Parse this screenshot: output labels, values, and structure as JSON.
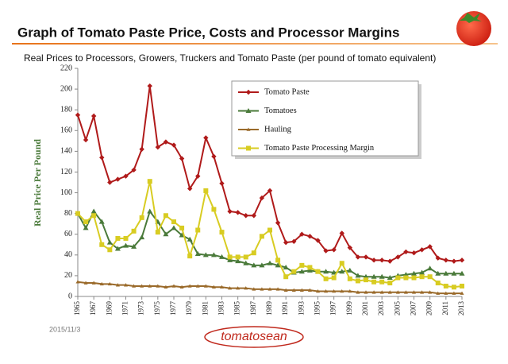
{
  "header": {
    "title": "Graph of Tomato Paste Price, Costs and Processor Margins"
  },
  "chart_data": {
    "type": "line",
    "subtitle": "Real Prices to Processors, Growers, Truckers and Tomato Paste  (per pound of tomato equivalent)",
    "y_label": "Real Price Per Pound",
    "x": [
      1965,
      1966,
      1967,
      1968,
      1969,
      1970,
      1971,
      1972,
      1973,
      1974,
      1975,
      1976,
      1977,
      1978,
      1979,
      1980,
      1981,
      1982,
      1983,
      1984,
      1985,
      1986,
      1987,
      1988,
      1989,
      1990,
      1991,
      1992,
      1993,
      1994,
      1995,
      1996,
      1997,
      1998,
      1999,
      2000,
      2001,
      2002,
      2003,
      2004,
      2005,
      2006,
      2007,
      2008,
      2009,
      2010,
      2011,
      2012,
      2013
    ],
    "xlim": [
      1965,
      2013
    ],
    "xticks": [
      1965,
      1967,
      1969,
      1971,
      1973,
      1975,
      1977,
      1979,
      1981,
      1983,
      1985,
      1987,
      1989,
      1991,
      1993,
      1995,
      1997,
      1999,
      2001,
      2003,
      2005,
      2007,
      2009,
      2011,
      2013
    ],
    "ylim": [
      0,
      220
    ],
    "yticks": [
      0,
      20,
      40,
      60,
      80,
      100,
      120,
      140,
      160,
      180,
      200,
      220
    ],
    "series": [
      {
        "name": "Tomato Paste",
        "color": "#b01a1a",
        "marker": "diamond",
        "values": [
          175,
          151,
          174,
          134,
          110,
          113,
          116,
          122,
          142,
          203,
          144,
          149,
          146,
          133,
          104,
          116,
          153,
          135,
          109,
          82,
          81,
          78,
          78,
          95,
          102,
          71,
          52,
          53,
          60,
          58,
          54,
          44,
          45,
          61,
          47,
          38,
          38,
          35,
          35,
          34,
          38,
          43,
          42,
          45,
          48,
          37,
          35,
          34,
          35
        ]
      },
      {
        "name": "Tomatoes",
        "color": "#4a7a3a",
        "marker": "triangle",
        "values": [
          80,
          66,
          82,
          72,
          52,
          46,
          49,
          48,
          57,
          82,
          72,
          60,
          66,
          59,
          55,
          41,
          40,
          40,
          38,
          35,
          34,
          32,
          30,
          30,
          32,
          30,
          28,
          23,
          24,
          25,
          24,
          24,
          23,
          24,
          25,
          20,
          19,
          19,
          19,
          18,
          20,
          21,
          22,
          23,
          27,
          22,
          22,
          22,
          22
        ]
      },
      {
        "name": "Hauling",
        "color": "#9a6a2a",
        "marker": "small-triangle",
        "values": [
          14,
          13,
          13,
          12,
          12,
          11,
          11,
          10,
          10,
          10,
          10,
          9,
          10,
          9,
          10,
          10,
          10,
          9,
          9,
          8,
          8,
          8,
          7,
          7,
          7,
          7,
          6,
          6,
          6,
          6,
          5,
          5,
          5,
          5,
          5,
          4,
          4,
          4,
          4,
          4,
          4,
          4,
          4,
          4,
          4,
          3,
          3,
          3,
          3
        ]
      },
      {
        "name": "Tomato Paste Processing Margin",
        "color": "#d8cc22",
        "marker": "square",
        "values": [
          80,
          72,
          78,
          50,
          45,
          56,
          56,
          63,
          76,
          111,
          62,
          78,
          72,
          66,
          39,
          64,
          102,
          84,
          62,
          38,
          38,
          38,
          42,
          58,
          64,
          35,
          19,
          24,
          30,
          28,
          24,
          17,
          18,
          32,
          17,
          15,
          16,
          14,
          14,
          13,
          18,
          18,
          18,
          19,
          19,
          13,
          10,
          9,
          10
        ]
      }
    ]
  },
  "footer": {
    "date": "2015/11/3",
    "logo": "tomatosean"
  }
}
